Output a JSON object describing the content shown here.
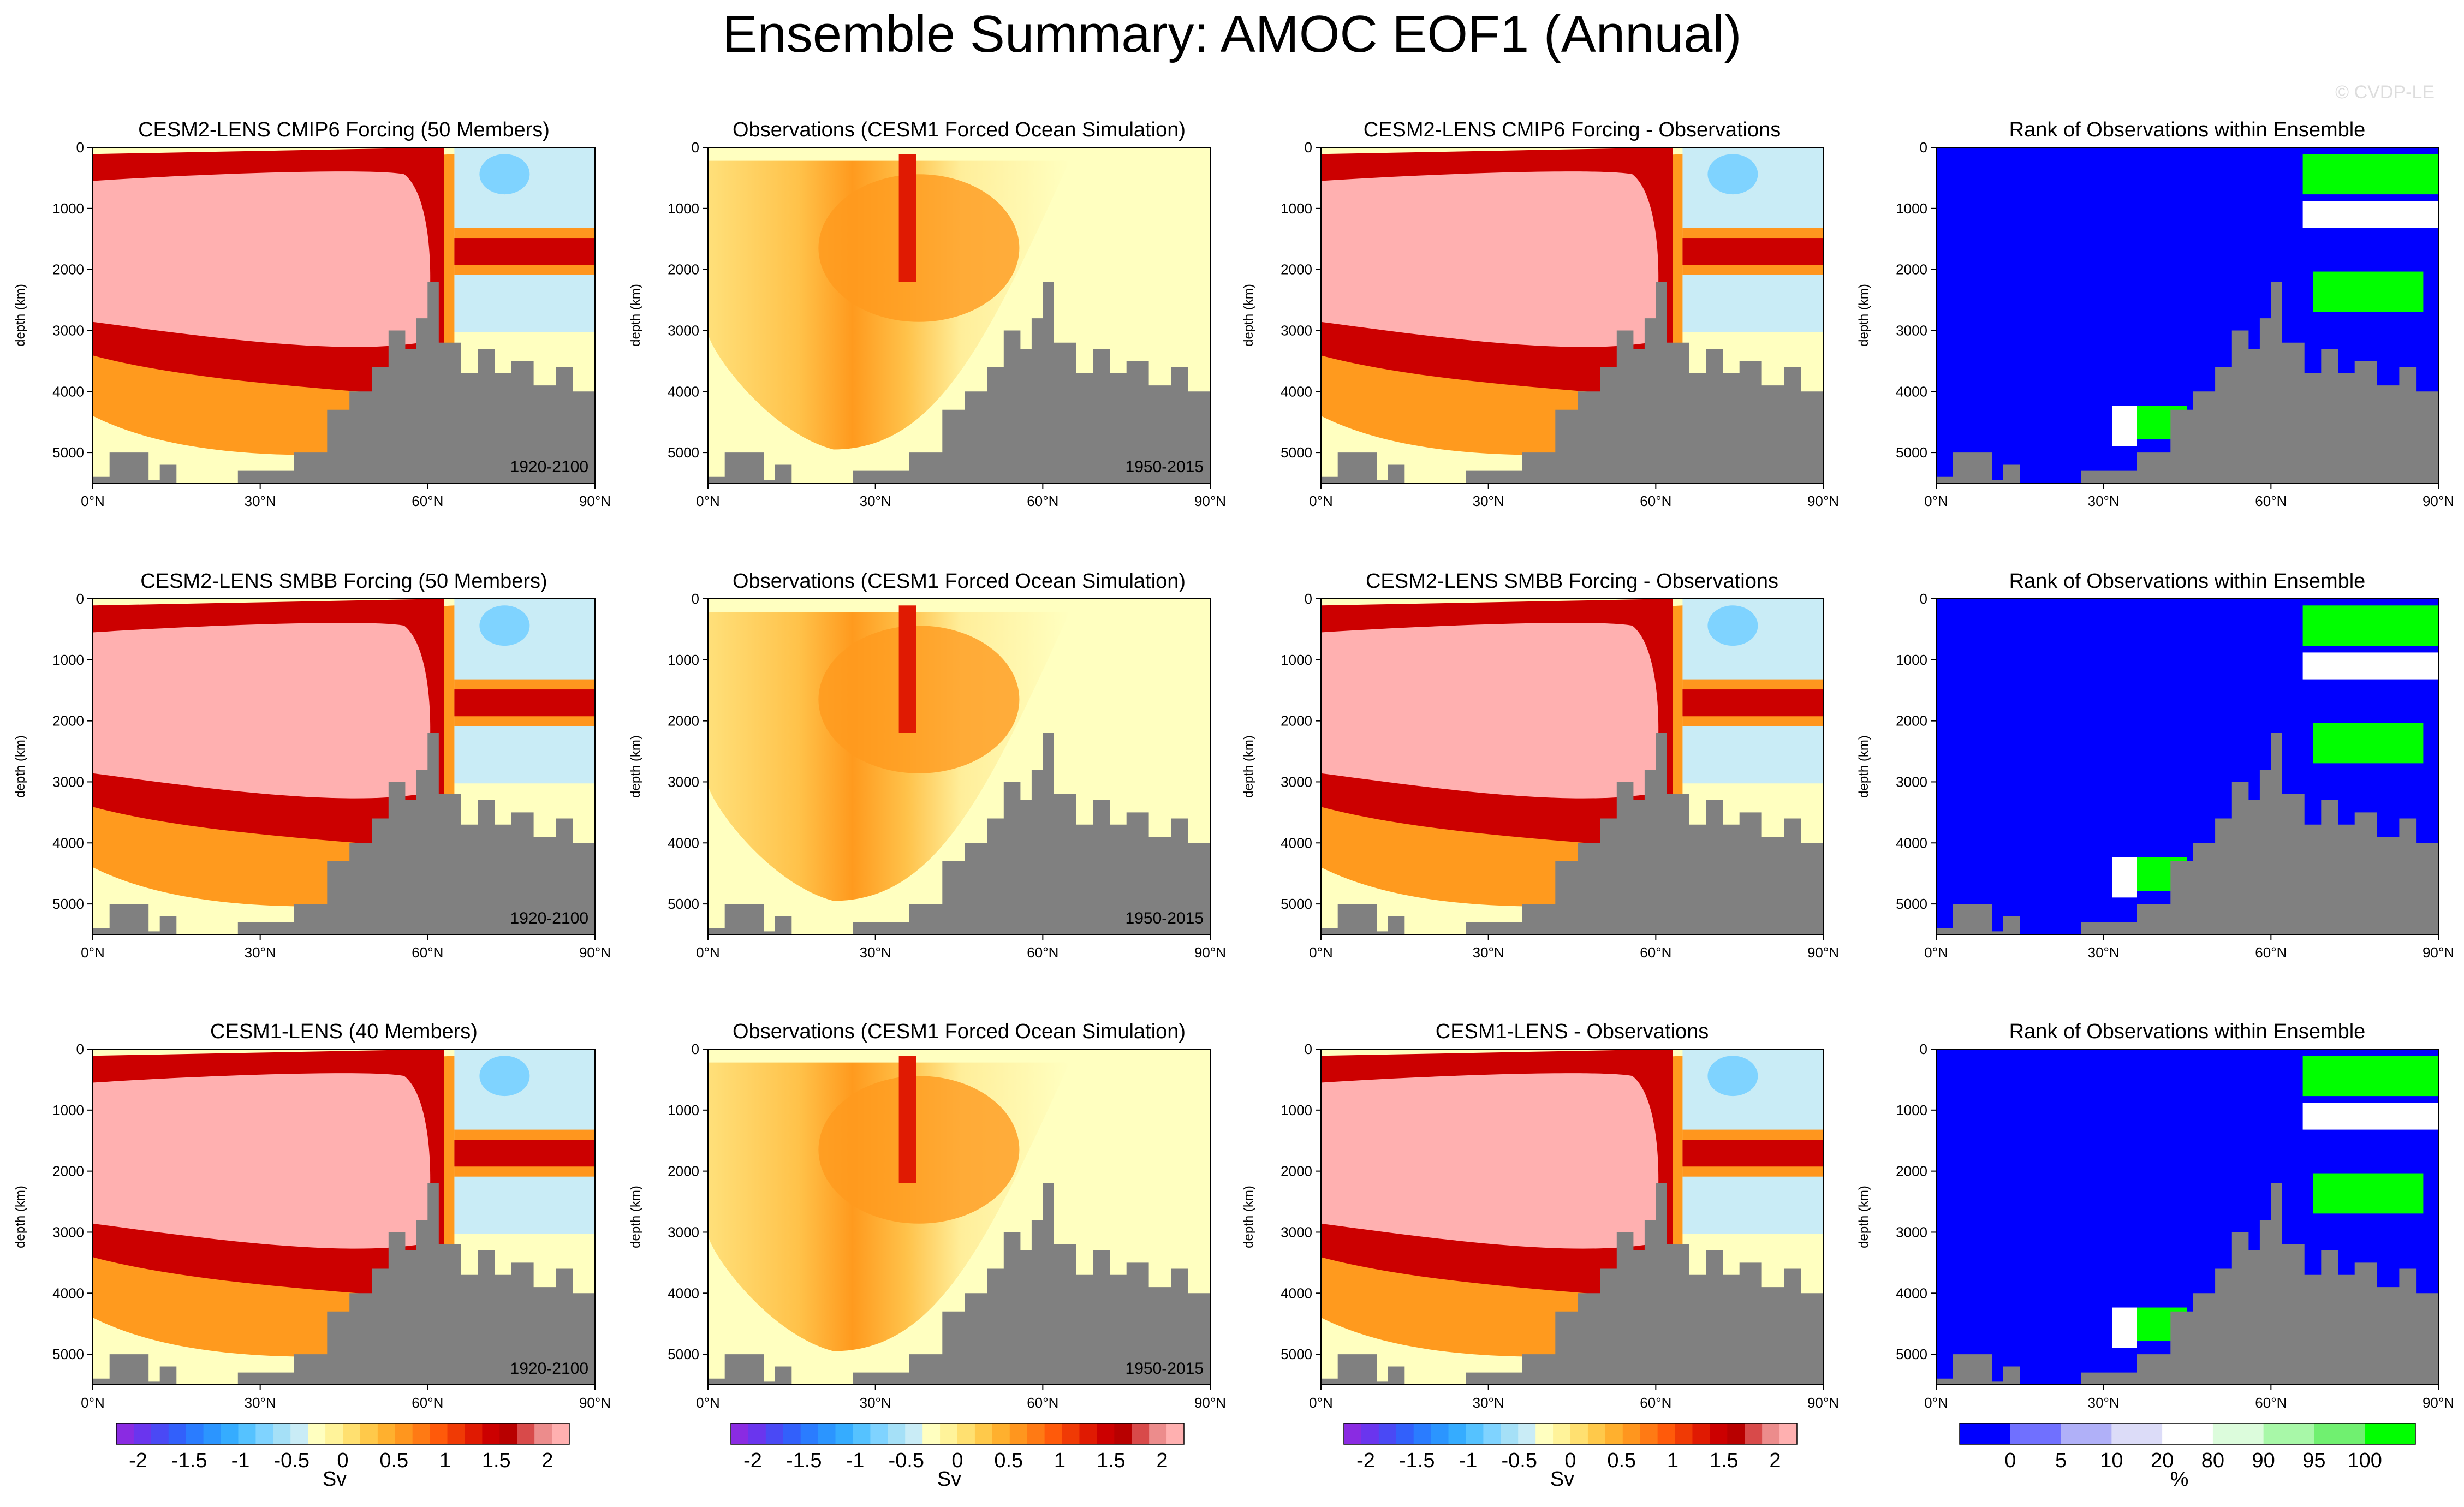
{
  "title": "Ensemble Summary: AMOC EOF1 (Annual)",
  "watermark": "© CVDP-LE",
  "colors": {
    "positive_saturated": "#ffb0b0",
    "zero_band": "#ffffc0",
    "land": "#808080",
    "rank_blue": "#0000ff",
    "rank_green": "#00ff00",
    "contour_line": "#000000"
  },
  "axes": {
    "ylabel": "depth (km)",
    "yticks": [
      "0",
      "1000",
      "2000",
      "3000",
      "4000",
      "5000"
    ],
    "xticks": [
      "0°N",
      "30°N",
      "60°N",
      "90°N"
    ]
  },
  "chart_data": {
    "type": "heatmap",
    "rows": [
      {
        "panels": [
          {
            "title": "CESM2-LENS CMIP6 Forcing (50 Members)",
            "kind": "model",
            "period": "1920-2100"
          },
          {
            "title": "Observations (CESM1 Forced Ocean Simulation)",
            "kind": "obs",
            "period": "1950-2015"
          },
          {
            "title": "CESM2-LENS CMIP6 Forcing - Observations",
            "kind": "diff",
            "period": ""
          },
          {
            "title": "Rank of Observations within Ensemble",
            "kind": "rank",
            "period": ""
          }
        ]
      },
      {
        "panels": [
          {
            "title": "CESM2-LENS SMBB Forcing (50 Members)",
            "kind": "model",
            "period": "1920-2100"
          },
          {
            "title": "Observations (CESM1 Forced Ocean Simulation)",
            "kind": "obs",
            "period": "1950-2015"
          },
          {
            "title": "CESM2-LENS SMBB Forcing - Observations",
            "kind": "diff",
            "period": ""
          },
          {
            "title": "Rank of Observations within Ensemble",
            "kind": "rank",
            "period": ""
          }
        ]
      },
      {
        "panels": [
          {
            "title": "CESM1-LENS (40 Members)",
            "kind": "model",
            "period": "1920-2100"
          },
          {
            "title": "Observations (CESM1 Forced Ocean Simulation)",
            "kind": "obs",
            "period": "1950-2015"
          },
          {
            "title": "CESM1-LENS - Observations",
            "kind": "diff",
            "period": ""
          },
          {
            "title": "Rank of Observations within Ensemble",
            "kind": "rank",
            "period": ""
          }
        ]
      }
    ],
    "x_range": [
      0,
      90
    ],
    "y_range": [
      0,
      5500
    ],
    "y_units": "km",
    "sv_colorbar": {
      "label": "Sv",
      "ticks": [
        "-2",
        "-1.5",
        "-1",
        "-0.5",
        "0",
        "0.5",
        "1",
        "1.5",
        "2"
      ],
      "colors": [
        "#8a2be2",
        "#6a35ee",
        "#4a49f5",
        "#3260fb",
        "#2a7cff",
        "#2b95ff",
        "#35acff",
        "#55c2ff",
        "#7fd3ff",
        "#a5e0f7",
        "#c9ecf6",
        "#ffffc0",
        "#fff39a",
        "#ffe070",
        "#ffc94a",
        "#ffb02e",
        "#ff961e",
        "#ff7a14",
        "#ff5a0a",
        "#f03a05",
        "#e01a02",
        "#cc0000",
        "#b80000",
        "#d84a4a",
        "#ec8c8c",
        "#ffb0b0"
      ]
    },
    "rank_colorbar": {
      "label": "%",
      "ticks": [
        "0",
        "5",
        "10",
        "20",
        "80",
        "90",
        "95",
        "100"
      ],
      "colors": [
        "#0000ff",
        "#7070ff",
        "#b0b0f8",
        "#dcdcf8",
        "#ffffff",
        "#dcfcdc",
        "#a8f8a8",
        "#70f070",
        "#00ff00"
      ]
    }
  }
}
